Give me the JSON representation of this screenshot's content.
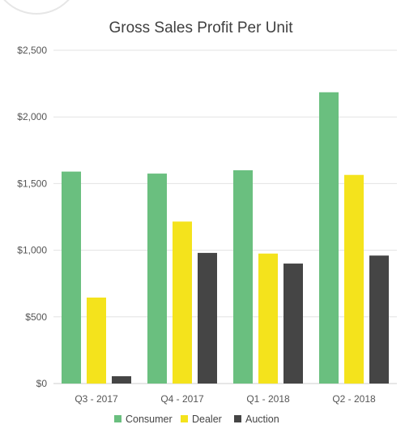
{
  "chart_data": {
    "type": "bar",
    "title": "Gross Sales Profit Per Unit",
    "categories": [
      "Q3 - 2017",
      "Q4 - 2017",
      "Q1 - 2018",
      "Q2 - 2018"
    ],
    "series": [
      {
        "name": "Consumer",
        "color": "#6abf7f",
        "values": [
          1590,
          1575,
          1600,
          2185
        ]
      },
      {
        "name": "Dealer",
        "color": "#f4e31c",
        "values": [
          645,
          1215,
          975,
          1565
        ]
      },
      {
        "name": "Auction",
        "color": "#454545",
        "values": [
          55,
          980,
          900,
          960
        ]
      }
    ],
    "y_ticks": [
      "$0",
      "$500",
      "$1,000",
      "$1,500",
      "$2,000",
      "$2,500"
    ],
    "ylim": [
      0,
      2500
    ],
    "grid": true,
    "legend_position": "bottom"
  }
}
